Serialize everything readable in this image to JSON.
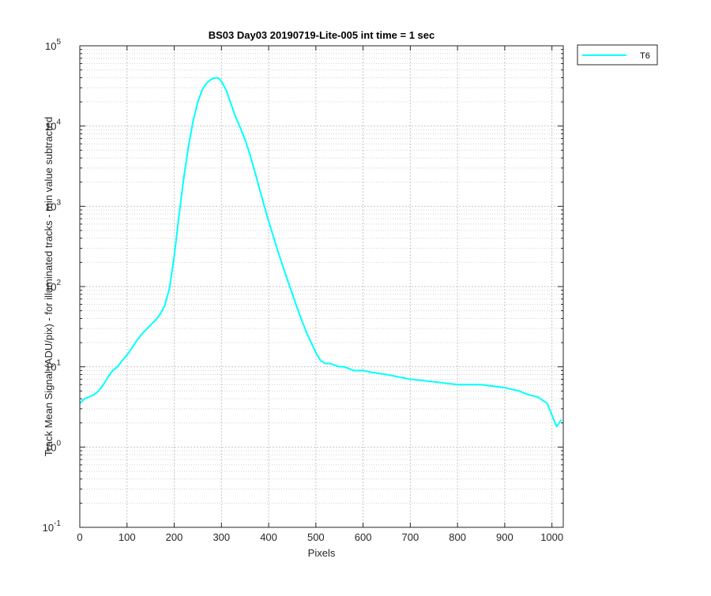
{
  "chart_data": {
    "type": "line",
    "title": "BS03 Day03 20190719-Lite-005 int time = 1 sec",
    "xlabel": "Pixels",
    "ylabel": "Track Mean Signal (ADU/pix) - for illuminated tracks - min value subtracted",
    "xlim": [
      0,
      1024
    ],
    "ylim": [
      0.1,
      100000
    ],
    "yscale": "log",
    "grid": true,
    "minor_grid": true,
    "legend_position": "outside-top-right",
    "x_ticks": [
      "0",
      "100",
      "200",
      "300",
      "400",
      "500",
      "600",
      "700",
      "800",
      "900",
      "1000"
    ],
    "y_ticks": [
      {
        "base": "10",
        "exp": "-1"
      },
      {
        "base": "10",
        "exp": "0"
      },
      {
        "base": "10",
        "exp": "1"
      },
      {
        "base": "10",
        "exp": "2"
      },
      {
        "base": "10",
        "exp": "3"
      },
      {
        "base": "10",
        "exp": "4"
      },
      {
        "base": "10",
        "exp": "5"
      }
    ],
    "series": [
      {
        "name": "T6",
        "color": "#00ffff",
        "x": [
          0,
          10,
          20,
          30,
          40,
          50,
          60,
          70,
          80,
          90,
          100,
          110,
          120,
          130,
          140,
          150,
          160,
          170,
          180,
          190,
          200,
          210,
          220,
          230,
          240,
          250,
          260,
          270,
          280,
          290,
          295,
          300,
          310,
          320,
          330,
          340,
          350,
          360,
          370,
          380,
          390,
          400,
          410,
          420,
          430,
          440,
          450,
          460,
          470,
          480,
          490,
          500,
          510,
          520,
          530,
          540,
          550,
          560,
          570,
          580,
          600,
          620,
          650,
          700,
          750,
          800,
          850,
          900,
          930,
          950,
          970,
          990,
          1000,
          1010,
          1020
        ],
        "y": [
          3.5,
          4,
          4.2,
          4.5,
          5,
          6,
          7.5,
          9,
          10,
          12,
          14,
          17,
          21,
          25,
          29,
          33,
          38,
          45,
          58,
          95,
          240,
          750,
          2200,
          5500,
          11500,
          20000,
          29000,
          35000,
          39000,
          40000,
          39000,
          36000,
          28000,
          19000,
          13000,
          9500,
          6800,
          4500,
          2800,
          1700,
          1050,
          650,
          420,
          270,
          180,
          120,
          82,
          55,
          38,
          27,
          20,
          15,
          12,
          11,
          11,
          10.5,
          10,
          10,
          9.5,
          9,
          9,
          8.5,
          8,
          7,
          6.5,
          6,
          6,
          5.5,
          5,
          4.5,
          4.2,
          3.5,
          2.5,
          1.8,
          2.2
        ]
      }
    ]
  }
}
